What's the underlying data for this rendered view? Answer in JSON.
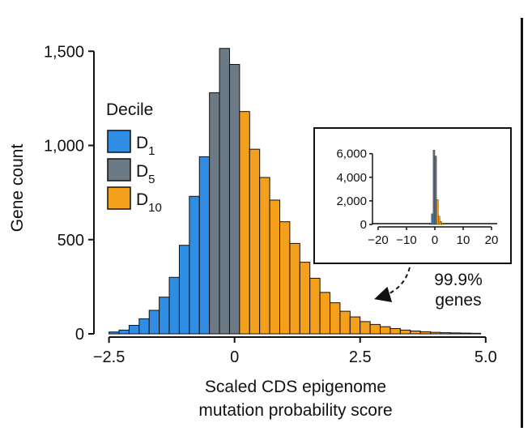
{
  "chart_data": {
    "type": "bar",
    "title": "",
    "xlabel": "Scaled CDS epigenome\nmutation probability score",
    "ylabel": "Gene count",
    "xlim": [
      -2.8,
      5.1
    ],
    "ylim": [
      0,
      1600
    ],
    "xticks": [
      -2.5,
      0,
      2.5,
      5.0
    ],
    "xtick_labels": [
      "−2.5",
      "0",
      "2.5",
      "5.0"
    ],
    "yticks": [
      0,
      500,
      1000,
      1500
    ],
    "ytick_labels": [
      "0",
      "500",
      "1,000",
      "1,500"
    ],
    "grid": false,
    "bin_width": 0.2,
    "bins": [
      {
        "x0": -2.5,
        "count": 10,
        "decile": "D1"
      },
      {
        "x0": -2.3,
        "count": 20,
        "decile": "D1"
      },
      {
        "x0": -2.1,
        "count": 45,
        "decile": "D1"
      },
      {
        "x0": -1.9,
        "count": 80,
        "decile": "D1"
      },
      {
        "x0": -1.7,
        "count": 125,
        "decile": "D1"
      },
      {
        "x0": -1.5,
        "count": 195,
        "decile": "D1"
      },
      {
        "x0": -1.3,
        "count": 300,
        "decile": "D1"
      },
      {
        "x0": -1.1,
        "count": 470,
        "decile": "D1"
      },
      {
        "x0": -0.9,
        "count": 730,
        "decile": "D1"
      },
      {
        "x0": -0.7,
        "count": 940,
        "decile": "D1"
      },
      {
        "x0": -0.5,
        "count": 1280,
        "decile": "D5"
      },
      {
        "x0": -0.3,
        "count": 1515,
        "decile": "D5"
      },
      {
        "x0": -0.1,
        "count": 1430,
        "decile": "D5"
      },
      {
        "x0": 0.1,
        "count": 1180,
        "decile": "D10"
      },
      {
        "x0": 0.3,
        "count": 980,
        "decile": "D10"
      },
      {
        "x0": 0.5,
        "count": 830,
        "decile": "D10"
      },
      {
        "x0": 0.7,
        "count": 710,
        "decile": "D10"
      },
      {
        "x0": 0.9,
        "count": 595,
        "decile": "D10"
      },
      {
        "x0": 1.1,
        "count": 480,
        "decile": "D10"
      },
      {
        "x0": 1.3,
        "count": 380,
        "decile": "D10"
      },
      {
        "x0": 1.5,
        "count": 295,
        "decile": "D10"
      },
      {
        "x0": 1.7,
        "count": 220,
        "decile": "D10"
      },
      {
        "x0": 1.9,
        "count": 165,
        "decile": "D10"
      },
      {
        "x0": 2.1,
        "count": 120,
        "decile": "D10"
      },
      {
        "x0": 2.3,
        "count": 90,
        "decile": "D10"
      },
      {
        "x0": 2.5,
        "count": 65,
        "decile": "D10"
      },
      {
        "x0": 2.7,
        "count": 50,
        "decile": "D10"
      },
      {
        "x0": 2.9,
        "count": 38,
        "decile": "D10"
      },
      {
        "x0": 3.1,
        "count": 28,
        "decile": "D10"
      },
      {
        "x0": 3.3,
        "count": 20,
        "decile": "D10"
      },
      {
        "x0": 3.5,
        "count": 15,
        "decile": "D10"
      },
      {
        "x0": 3.7,
        "count": 11,
        "decile": "D10"
      },
      {
        "x0": 3.9,
        "count": 8,
        "decile": "D10"
      },
      {
        "x0": 4.1,
        "count": 6,
        "decile": "D10"
      },
      {
        "x0": 4.3,
        "count": 5,
        "decile": "D10"
      },
      {
        "x0": 4.5,
        "count": 4,
        "decile": "D10"
      },
      {
        "x0": 4.7,
        "count": 3,
        "decile": "D10"
      }
    ],
    "legend": {
      "title": "Decile",
      "placement": "left",
      "entries": [
        {
          "key": "D1",
          "base": "D",
          "sub": "1",
          "color": "#2f8de4"
        },
        {
          "key": "D5",
          "base": "D",
          "sub": "5",
          "color": "#6c7a86"
        },
        {
          "key": "D10",
          "base": "D",
          "sub": "10",
          "color": "#f4a01c"
        }
      ]
    },
    "inset": {
      "placement": "top-right",
      "xlim": [
        -22,
        22
      ],
      "ylim": [
        0,
        6800
      ],
      "xticks": [
        -20,
        -10,
        0,
        10,
        20
      ],
      "xtick_labels": [
        "−20",
        "−10",
        "0",
        "10",
        "20"
      ],
      "yticks": [
        0,
        2000,
        4000,
        6000
      ],
      "ytick_labels": [
        "0",
        "2,000",
        "4,000",
        "6,000"
      ],
      "bin_width": 0.6,
      "bins": [
        {
          "x0": -1.8,
          "count": 120,
          "decile": "D1"
        },
        {
          "x0": -1.2,
          "count": 900,
          "decile": "D1"
        },
        {
          "x0": -0.6,
          "count": 6300,
          "decile": "D5"
        },
        {
          "x0": 0.0,
          "count": 5800,
          "decile": "D5"
        },
        {
          "x0": 0.6,
          "count": 2100,
          "decile": "D10"
        },
        {
          "x0": 1.2,
          "count": 700,
          "decile": "D10"
        },
        {
          "x0": 1.8,
          "count": 250,
          "decile": "D10"
        },
        {
          "x0": 2.4,
          "count": 80,
          "decile": "D10"
        }
      ]
    },
    "annotation": {
      "text_line1": "99.9%",
      "text_line2": "genes"
    }
  }
}
